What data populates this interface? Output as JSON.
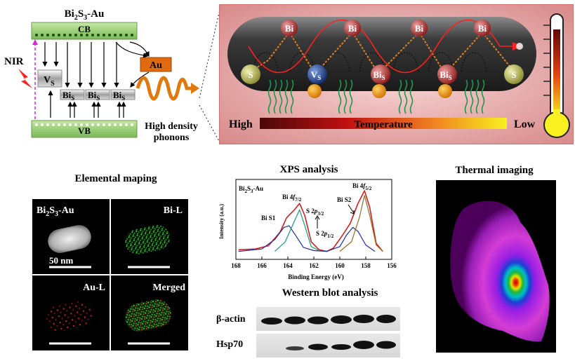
{
  "band_diagram": {
    "title_main": "Bi",
    "title_sub1": "2",
    "title_mid": "S",
    "title_sub2": "3",
    "title_end": "-Au",
    "cb": "CB",
    "vb": "VB",
    "nir": "NIR",
    "vs": "V",
    "vs_sub": "S",
    "bis": "Bi",
    "bis_sub": "S",
    "au": "Au",
    "phonons_line1": "High density",
    "phonons_line2": "phonons"
  },
  "lattice": {
    "bi": "Bi",
    "s": "S",
    "vs": "V",
    "vs_sub": "S",
    "bis": "Bi",
    "bis_sub": "S",
    "high": "High",
    "low": "Low",
    "temperature": "Temperature"
  },
  "elemental": {
    "title": "Elemental maping",
    "p1_label_main": "Bi",
    "p1_sub1": "2",
    "p1_mid": "S",
    "p1_sub2": "3",
    "p1_end": "-Au",
    "scale": "50 nm",
    "p2_label": "Bi-L",
    "p3_label": "Au-L",
    "p4_label": "Merged"
  },
  "xps": {
    "title": "XPS analysis",
    "sample_main": "Bi",
    "sample_sub1": "2",
    "sample_mid": "S",
    "sample_sub2": "3",
    "sample_end": "-Au",
    "ylabel": "Intensity (a.u.)",
    "xlabel": "Binding Energy (eV)",
    "ann_bis1": "Bi S1",
    "ann_bi4f72_main": "Bi 4",
    "ann_bi4f72_f": "f",
    "ann_bi4f72_sub": "7/2",
    "ann_s2p32_main": "S 2",
    "ann_s2p32_p": "p",
    "ann_s2p32_sub": "3/2",
    "ann_s2p12_main": "S 2",
    "ann_s2p12_p": "p",
    "ann_s2p12_sub": "1/2",
    "ann_bis2": "Bi S2",
    "ann_bi4f52_main": "Bi 4",
    "ann_bi4f52_f": "f",
    "ann_bi4f52_sub": "5/2"
  },
  "chart_data": {
    "type": "line",
    "xlabel": "Binding Energy (eV)",
    "ylabel": "Intensity (a.u.)",
    "xlim": [
      168,
      156
    ],
    "x_ticks": [
      "168",
      "166",
      "164",
      "162",
      "160",
      "158",
      "156"
    ],
    "series": [
      {
        "color": "#d42020",
        "points": [
          [
            167.8,
            0.12
          ],
          [
            166.5,
            0.13
          ],
          [
            165.5,
            0.17
          ],
          [
            164.6,
            0.34
          ],
          [
            164.1,
            0.52
          ],
          [
            163.5,
            0.62
          ],
          [
            163.1,
            0.7
          ],
          [
            162.7,
            0.55
          ],
          [
            162.2,
            0.22
          ],
          [
            161.6,
            0.12
          ],
          [
            161.0,
            0.1
          ],
          [
            160.5,
            0.14
          ],
          [
            159.8,
            0.3
          ],
          [
            159.2,
            0.45
          ],
          [
            158.6,
            0.7
          ],
          [
            158.1,
            0.86
          ],
          [
            157.7,
            0.65
          ],
          [
            157.2,
            0.2
          ],
          [
            156.7,
            0.1
          ]
        ]
      },
      {
        "color": "#1e2aa8",
        "points": [
          [
            167.8,
            0.1
          ],
          [
            166.0,
            0.13
          ],
          [
            165.0,
            0.25
          ],
          [
            164.3,
            0.4
          ],
          [
            163.9,
            0.42
          ],
          [
            163.4,
            0.3
          ],
          [
            162.8,
            0.15
          ],
          [
            162.0,
            0.11
          ],
          [
            161.0,
            0.1
          ],
          [
            160.0,
            0.16
          ],
          [
            159.5,
            0.3
          ],
          [
            159.0,
            0.4
          ],
          [
            158.6,
            0.35
          ],
          [
            158.0,
            0.18
          ],
          [
            157.3,
            0.1
          ]
        ]
      },
      {
        "color": "#1a9a7a",
        "points": [
          [
            165.0,
            0.1
          ],
          [
            164.2,
            0.22
          ],
          [
            163.6,
            0.44
          ],
          [
            163.1,
            0.62
          ],
          [
            162.7,
            0.42
          ],
          [
            162.2,
            0.16
          ],
          [
            161.5,
            0.1
          ]
        ]
      },
      {
        "color": "#8a7020",
        "points": [
          [
            160.0,
            0.1
          ],
          [
            159.1,
            0.22
          ],
          [
            158.5,
            0.52
          ],
          [
            158.1,
            0.8
          ],
          [
            157.7,
            0.55
          ],
          [
            157.2,
            0.18
          ],
          [
            156.7,
            0.1
          ]
        ]
      }
    ]
  },
  "western": {
    "title": "Western blot analysis",
    "row1": "β-actin",
    "row2": "Hsp70"
  },
  "thermal": {
    "title": "Thermal imaging"
  }
}
